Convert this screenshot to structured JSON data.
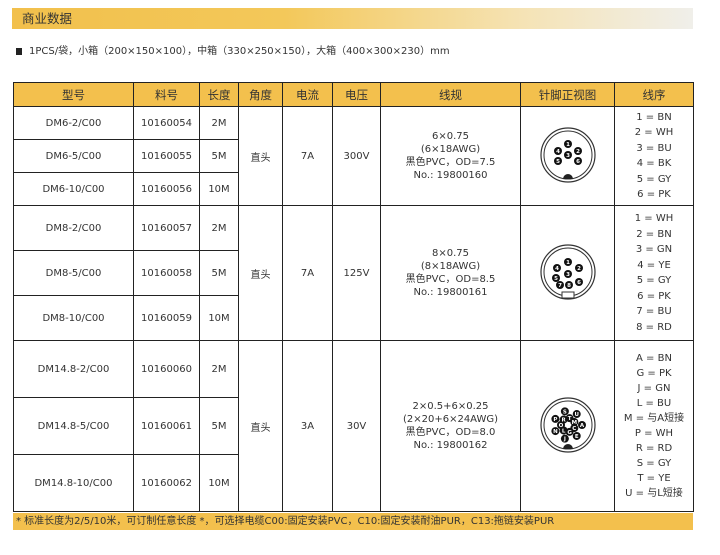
{
  "title": "商业数据",
  "packaging": "1PCS/袋，小箱（200×150×100），中箱（330×250×150），大箱（400×300×230）mm",
  "headers": [
    "型号",
    "料号",
    "长度",
    "角度",
    "电流",
    "电压",
    "线规",
    "针脚正视图",
    "线序"
  ],
  "groups": [
    {
      "rows": [
        {
          "model": "DM6-2/C00",
          "part": "10160054",
          "len": "2M"
        },
        {
          "model": "DM6-5/C00",
          "part": "10160055",
          "len": "5M"
        },
        {
          "model": "DM6-10/C00",
          "part": "10160056",
          "len": "10M"
        }
      ],
      "angle": "直头",
      "current": "7A",
      "voltage": "300V",
      "spec": [
        "6×0.75",
        "(6×18AWG)",
        "黑色PVC，OD=7.5",
        "No.: 19800160"
      ],
      "pins": [
        "1",
        "2",
        "3",
        "4",
        "5",
        "6"
      ],
      "wiring": [
        "1 = BN",
        "2 = WH",
        "3 = BU",
        "4 = BK",
        "5 = GY",
        "6 = PK"
      ]
    },
    {
      "rows": [
        {
          "model": "DM8-2/C00",
          "part": "10160057",
          "len": "2M"
        },
        {
          "model": "DM8-5/C00",
          "part": "10160058",
          "len": "5M"
        },
        {
          "model": "DM8-10/C00",
          "part": "10160059",
          "len": "10M"
        }
      ],
      "angle": "直头",
      "current": "7A",
      "voltage": "125V",
      "spec": [
        "8×0.75",
        "(8×18AWG)",
        "黑色PVC，OD=8.5",
        "No.: 19800161"
      ],
      "pins": [
        "1",
        "2",
        "3",
        "4",
        "5",
        "6",
        "7",
        "8"
      ],
      "wiring": [
        "1 = WH",
        "2 = BN",
        "3 = GN",
        "4 = YE",
        "5 = GY",
        "6 = PK",
        "7 = BU",
        "8 = RD"
      ]
    },
    {
      "rows": [
        {
          "model": "DM14.8-2/C00",
          "part": "10160060",
          "len": "2M"
        },
        {
          "model": "DM14.8-5/C00",
          "part": "10160061",
          "len": "5M"
        },
        {
          "model": "DM14.8-10/C00",
          "part": "10160062",
          "len": "10M"
        }
      ],
      "angle": "直头",
      "current": "3A",
      "voltage": "30V",
      "spec": [
        "2×0.5+6×0.25",
        "(2×20+6×24AWG)",
        "黑色PVC，OD=8.0",
        "No.: 19800162"
      ],
      "pins": [
        "A",
        "C",
        "E",
        "G",
        "J",
        "L",
        "N",
        "O",
        "P",
        "R",
        "S",
        "T",
        "U",
        "M"
      ],
      "wiring": [
        "A = BN",
        "G = PK",
        "J = GN",
        "L = BU",
        "M = 与A短接",
        "P = WH",
        "R = RD",
        "S = GY",
        "T = YE",
        "U = 与L短接"
      ]
    }
  ],
  "footnote": "* 标准长度为2/5/10米，可订制任意长度 *，可选择电缆C00:固定安装PVC，C10:固定安装耐油PUR，C13:拖链安装PUR",
  "colors": {
    "accent": "#f3c04d"
  }
}
